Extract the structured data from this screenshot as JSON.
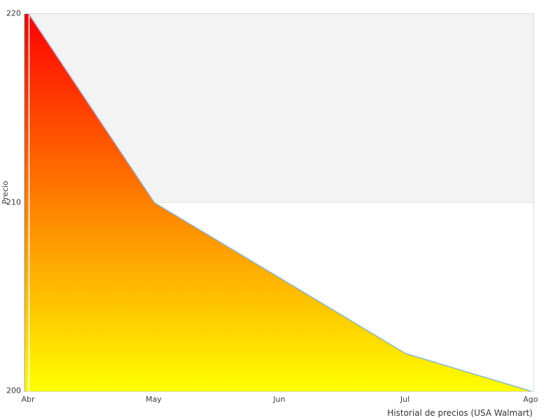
{
  "chart_data": {
    "type": "area",
    "categories": [
      "Abr",
      "May",
      "Jun",
      "Jul",
      "Ago"
    ],
    "values": [
      220,
      210,
      206,
      202,
      200
    ],
    "title": "",
    "xlabel": "Historial de precios (USA Walmart)",
    "ylabel": "Precio",
    "ylim": [
      200,
      220
    ],
    "yticks": [
      220,
      210,
      200
    ],
    "grid": "off",
    "legend": "none",
    "plot_band": {
      "from": 210,
      "to": 220,
      "color": "#f3f3f3"
    },
    "line_color": "#7cb5ec",
    "fill_gradient": {
      "top": "#ff0000",
      "mid": "#ff8000",
      "bottom": "#ffff00"
    },
    "left_edge_gradient": {
      "top": "#d91100",
      "mid": "#d96d00",
      "bottom": "#d9d900"
    },
    "first_tick_gridline_color": "#ffffff",
    "plot_border_color": "#d9d9d9"
  }
}
